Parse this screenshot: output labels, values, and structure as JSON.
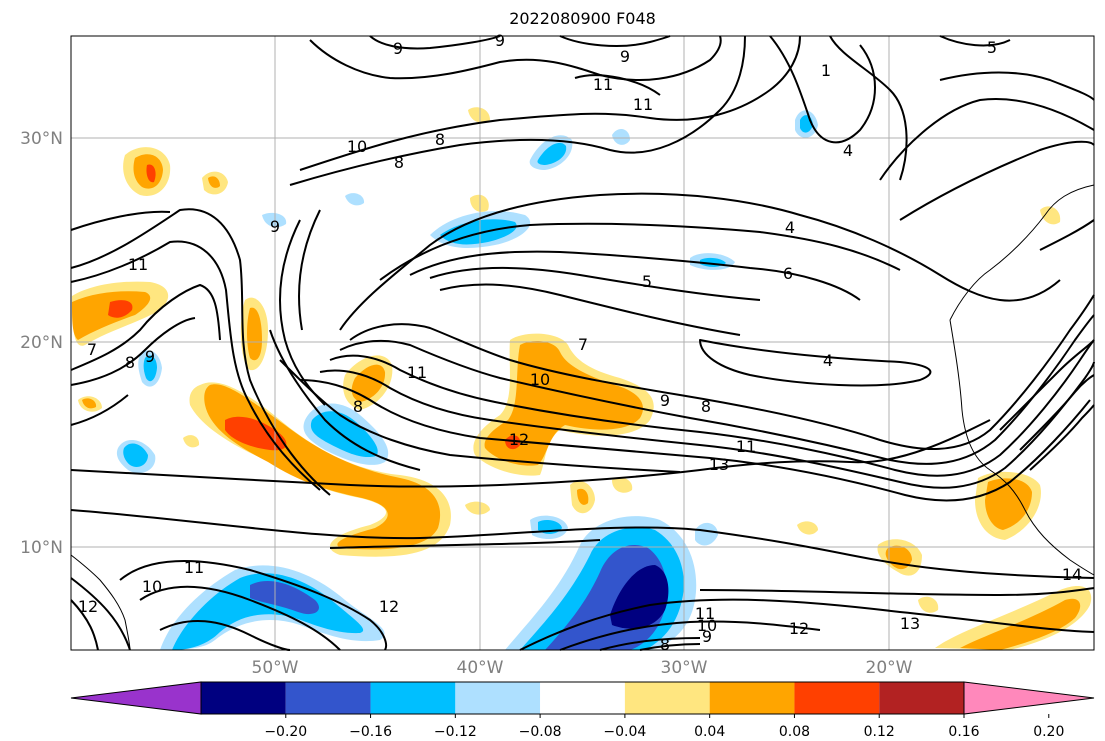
{
  "title": "2022080900 F048",
  "map": {
    "lat_labels": [
      "30°N",
      "20°N",
      "10°N"
    ],
    "lon_labels": [
      "50°W",
      "40°W",
      "30°W",
      "20°W"
    ],
    "label_color": "#808080"
  },
  "contour_labels": [
    {
      "text": "9"
    },
    {
      "text": "9"
    },
    {
      "text": "9"
    },
    {
      "text": "5"
    },
    {
      "text": "11"
    },
    {
      "text": "11"
    },
    {
      "text": "1"
    },
    {
      "text": "10"
    },
    {
      "text": "8"
    },
    {
      "text": "8"
    },
    {
      "text": "4"
    },
    {
      "text": "9"
    },
    {
      "text": "4"
    },
    {
      "text": "11"
    },
    {
      "text": "5"
    },
    {
      "text": "6"
    },
    {
      "text": "7"
    },
    {
      "text": "8"
    },
    {
      "text": "9"
    },
    {
      "text": "7"
    },
    {
      "text": "4"
    },
    {
      "text": "11"
    },
    {
      "text": "10"
    },
    {
      "text": "8"
    },
    {
      "text": "9"
    },
    {
      "text": "8"
    },
    {
      "text": "12"
    },
    {
      "text": "11"
    },
    {
      "text": "13"
    },
    {
      "text": "11"
    },
    {
      "text": "10"
    },
    {
      "text": "12"
    },
    {
      "text": "12"
    },
    {
      "text": "14"
    },
    {
      "text": "13"
    },
    {
      "text": "12"
    },
    {
      "text": "11"
    },
    {
      "text": "10"
    },
    {
      "text": "9"
    },
    {
      "text": "8"
    }
  ],
  "colorbar": {
    "colors": [
      "#9933cc",
      "#000080",
      "#3355cc",
      "#00bfff",
      "#aee0ff",
      "#ffffff",
      "#ffe680",
      "#ffa500",
      "#ff4000",
      "#b22222",
      "#ff88bb"
    ],
    "tick_labels": [
      "−0.20",
      "−0.16",
      "−0.12",
      "−0.08",
      "−0.04",
      "0.04",
      "0.08",
      "0.12",
      "0.16",
      "0.20"
    ]
  }
}
